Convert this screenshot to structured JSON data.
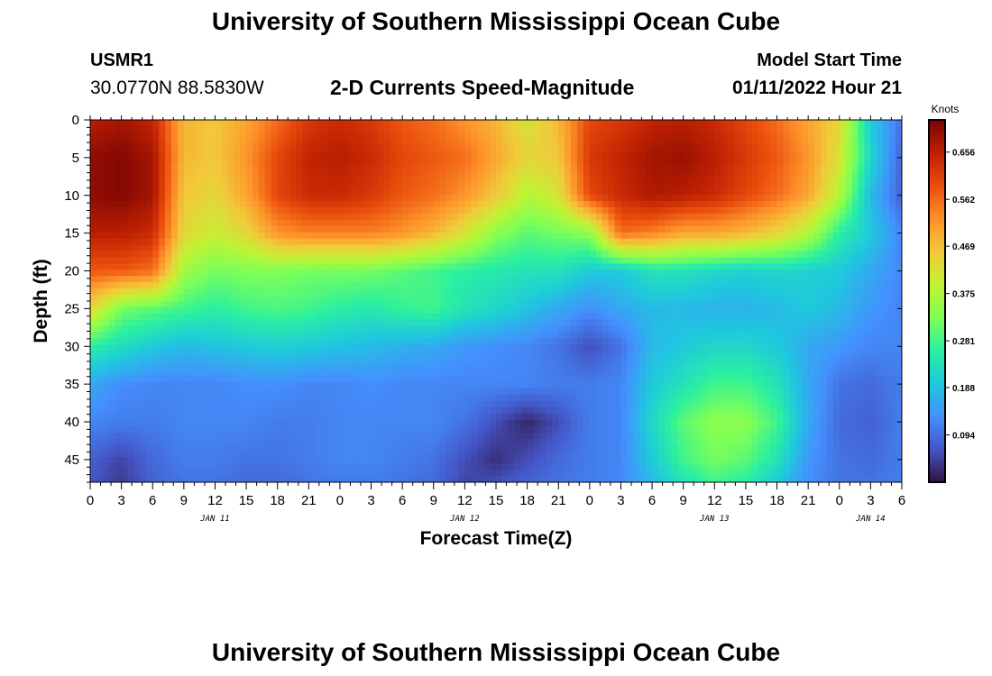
{
  "header": {
    "title": "University of Southern Mississippi Ocean Cube",
    "station": "USMR1",
    "coords": "30.0770N  88.5830W",
    "subtitle": "2-D Currents Speed-Magnitude",
    "model_start_label": "Model Start Time",
    "model_start_value": "01/11/2022 Hour 21"
  },
  "footer": {
    "title": "University of Southern Mississippi Ocean Cube"
  },
  "colors": {
    "ramp": [
      "#30123b",
      "#4454c4",
      "#4490fe",
      "#1fc8de",
      "#29efa2",
      "#7eff56",
      "#c1f334",
      "#f1ca3a",
      "#fe922a",
      "#ea4f0d",
      "#be2102",
      "#7a0403"
    ]
  },
  "chart_data": {
    "type": "heatmap",
    "xlabel": "Forecast Time(Z)",
    "ylabel": "Depth (ft)",
    "x_range_hours": [
      0,
      78
    ],
    "y_range_ft": [
      0,
      48
    ],
    "x_tick_labels": [
      "0",
      "3",
      "6",
      "9",
      "12",
      "15",
      "18",
      "21",
      "0",
      "3",
      "6",
      "9",
      "12",
      "15",
      "18",
      "21",
      "0",
      "3",
      "6",
      "9",
      "12",
      "15",
      "18",
      "21",
      "0",
      "3",
      "6"
    ],
    "y_ticks": [
      0,
      5,
      10,
      15,
      20,
      25,
      30,
      35,
      40,
      45
    ],
    "day_labels": [
      {
        "label": "JAN 11",
        "hour": 12
      },
      {
        "label": "JAN 12",
        "hour": 36
      },
      {
        "label": "JAN 13",
        "hour": 60
      },
      {
        "label": "JAN 14",
        "hour": 75
      }
    ],
    "colorbar": {
      "unit": "Knots",
      "range": [
        0.0,
        0.72
      ],
      "tick_values": [
        0.094,
        0.188,
        0.281,
        0.375,
        0.469,
        0.562,
        0.656
      ],
      "tick_labels": [
        "0.094",
        "0.188",
        "0.281",
        "0.375",
        "0.469",
        "0.562",
        "0.656"
      ]
    },
    "depths_ft": [
      0,
      5,
      10,
      15,
      20,
      25,
      30,
      35,
      40,
      45,
      48
    ],
    "times_hours": [
      0,
      3,
      6,
      9,
      12,
      15,
      18,
      21,
      24,
      27,
      30,
      33,
      36,
      39,
      42,
      45,
      48,
      51,
      54,
      57,
      60,
      63,
      66,
      69,
      72,
      75,
      78
    ],
    "speed_knots": [
      [
        0.66,
        0.68,
        0.65,
        0.48,
        0.46,
        0.5,
        0.56,
        0.62,
        0.64,
        0.62,
        0.58,
        0.56,
        0.52,
        0.48,
        0.42,
        0.48,
        0.6,
        0.62,
        0.65,
        0.66,
        0.64,
        0.6,
        0.56,
        0.5,
        0.44,
        0.2,
        0.1
      ],
      [
        0.7,
        0.71,
        0.68,
        0.48,
        0.46,
        0.52,
        0.6,
        0.65,
        0.66,
        0.64,
        0.6,
        0.58,
        0.56,
        0.5,
        0.44,
        0.46,
        0.62,
        0.65,
        0.68,
        0.69,
        0.66,
        0.62,
        0.58,
        0.52,
        0.42,
        0.22,
        0.08
      ],
      [
        0.7,
        0.71,
        0.68,
        0.46,
        0.44,
        0.5,
        0.6,
        0.64,
        0.64,
        0.62,
        0.58,
        0.56,
        0.52,
        0.46,
        0.38,
        0.42,
        0.6,
        0.64,
        0.67,
        0.66,
        0.64,
        0.6,
        0.56,
        0.5,
        0.38,
        0.18,
        0.08
      ],
      [
        0.66,
        0.66,
        0.64,
        0.44,
        0.4,
        0.44,
        0.52,
        0.54,
        0.54,
        0.54,
        0.52,
        0.48,
        0.42,
        0.34,
        0.3,
        0.32,
        0.34,
        0.56,
        0.54,
        0.5,
        0.5,
        0.48,
        0.44,
        0.38,
        0.26,
        0.2,
        0.12
      ],
      [
        0.58,
        0.58,
        0.56,
        0.36,
        0.32,
        0.33,
        0.33,
        0.32,
        0.32,
        0.32,
        0.3,
        0.28,
        0.26,
        0.25,
        0.24,
        0.24,
        0.2,
        0.2,
        0.24,
        0.24,
        0.22,
        0.21,
        0.22,
        0.21,
        0.2,
        0.16,
        0.12
      ],
      [
        0.44,
        0.32,
        0.3,
        0.28,
        0.26,
        0.28,
        0.29,
        0.28,
        0.26,
        0.25,
        0.27,
        0.28,
        0.24,
        0.22,
        0.19,
        0.16,
        0.13,
        0.16,
        0.18,
        0.18,
        0.17,
        0.17,
        0.18,
        0.2,
        0.18,
        0.14,
        0.12
      ],
      [
        0.26,
        0.23,
        0.2,
        0.18,
        0.19,
        0.2,
        0.21,
        0.2,
        0.19,
        0.18,
        0.17,
        0.16,
        0.14,
        0.13,
        0.12,
        0.1,
        0.06,
        0.1,
        0.18,
        0.2,
        0.22,
        0.22,
        0.2,
        0.16,
        0.14,
        0.12,
        0.12
      ],
      [
        0.16,
        0.13,
        0.12,
        0.12,
        0.12,
        0.13,
        0.13,
        0.12,
        0.12,
        0.13,
        0.12,
        0.12,
        0.12,
        0.12,
        0.12,
        0.11,
        0.11,
        0.12,
        0.2,
        0.24,
        0.28,
        0.28,
        0.24,
        0.16,
        0.1,
        0.09,
        0.11
      ],
      [
        0.12,
        0.11,
        0.11,
        0.12,
        0.12,
        0.12,
        0.11,
        0.11,
        0.12,
        0.12,
        0.12,
        0.12,
        0.1,
        0.06,
        0.02,
        0.06,
        0.11,
        0.12,
        0.22,
        0.3,
        0.34,
        0.34,
        0.28,
        0.16,
        0.09,
        0.08,
        0.11
      ],
      [
        0.08,
        0.05,
        0.09,
        0.11,
        0.11,
        0.1,
        0.1,
        0.11,
        0.12,
        0.12,
        0.11,
        0.1,
        0.06,
        0.03,
        0.06,
        0.09,
        0.11,
        0.12,
        0.2,
        0.28,
        0.32,
        0.3,
        0.24,
        0.14,
        0.1,
        0.09,
        0.11
      ],
      [
        0.07,
        0.04,
        0.08,
        0.1,
        0.1,
        0.09,
        0.09,
        0.1,
        0.11,
        0.11,
        0.1,
        0.09,
        0.05,
        0.06,
        0.08,
        0.1,
        0.11,
        0.12,
        0.18,
        0.24,
        0.28,
        0.26,
        0.2,
        0.13,
        0.1,
        0.1,
        0.11
      ]
    ]
  }
}
